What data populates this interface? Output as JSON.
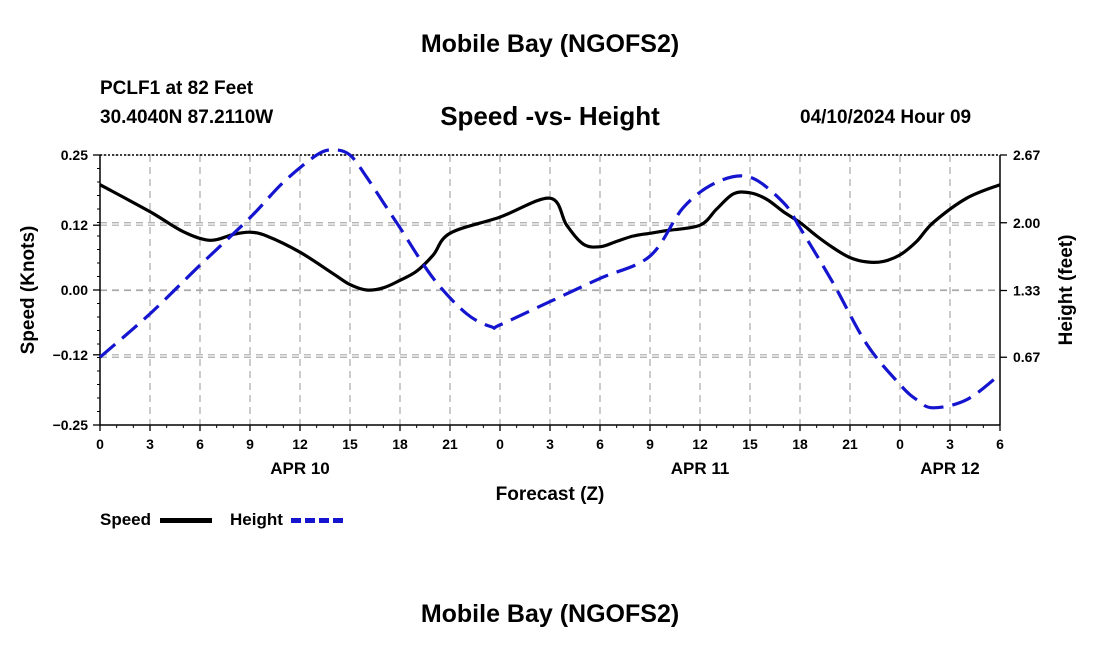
{
  "header": {
    "title": "Mobile Bay (NGOFS2)",
    "station": "PCLF1 at 82 Feet",
    "coords": "30.4040N  87.2110W",
    "chart_title": "Speed -vs- Height",
    "datetime": "04/10/2024 Hour 09"
  },
  "footer": {
    "title": "Mobile Bay (NGOFS2)"
  },
  "legend": {
    "speed_label": "Speed",
    "height_label": "Height"
  },
  "colors": {
    "speed": "#000000",
    "height": "#1515d0",
    "grid": "#aaaaaa"
  },
  "chart_data": {
    "type": "line",
    "title": "Speed -vs- Height",
    "xlabel": "Forecast (Z)",
    "ylabel": "Speed (Knots)",
    "y2label": "Height (feet)",
    "xlim": [
      0,
      54
    ],
    "ylim": [
      -0.25,
      0.25
    ],
    "y2lim": [
      0.0,
      2.67
    ],
    "x_ticks": [
      0,
      3,
      6,
      9,
      12,
      15,
      18,
      21,
      24,
      27,
      30,
      33,
      36,
      39,
      42,
      45,
      48,
      51,
      54
    ],
    "x_tick_labels": [
      "0",
      "3",
      "6",
      "9",
      "12",
      "15",
      "18",
      "21",
      "0",
      "3",
      "6",
      "9",
      "12",
      "15",
      "18",
      "21",
      "0",
      "3",
      "6"
    ],
    "date_labels": [
      {
        "x": 12,
        "label": "APR 10"
      },
      {
        "x": 36,
        "label": "APR 11"
      },
      {
        "x": 51,
        "label": "APR 12"
      }
    ],
    "y_ticks": [
      -0.25,
      -0.12,
      0.0,
      0.12,
      0.25
    ],
    "y_tick_labels": [
      "−0.25",
      "−0.12",
      "0.00",
      "0.12",
      "0.25"
    ],
    "y2_ticks": [
      0.67,
      1.33,
      2.0,
      2.67
    ],
    "y2_tick_labels": [
      "0.67",
      "1.33",
      "2.00",
      "2.67"
    ],
    "series": [
      {
        "name": "Speed",
        "axis": "left",
        "style": "solid",
        "x": [
          0,
          3,
          5,
          6.6,
          8,
          9,
          10,
          12,
          14,
          15,
          16,
          17,
          18,
          19,
          20,
          21,
          24,
          27,
          28,
          29,
          30,
          31,
          32,
          33,
          34,
          36,
          37,
          38,
          39,
          40,
          41,
          42,
          43,
          44,
          45,
          46,
          47,
          48,
          49,
          50,
          52,
          54
        ],
        "y": [
          0.195,
          0.145,
          0.108,
          0.092,
          0.103,
          0.107,
          0.1,
          0.07,
          0.03,
          0.01,
          0.0,
          0.004,
          0.018,
          0.035,
          0.065,
          0.105,
          0.135,
          0.17,
          0.12,
          0.085,
          0.08,
          0.09,
          0.1,
          0.105,
          0.11,
          0.12,
          0.15,
          0.178,
          0.18,
          0.168,
          0.145,
          0.125,
          0.1,
          0.078,
          0.06,
          0.052,
          0.053,
          0.065,
          0.09,
          0.125,
          0.17,
          0.195
        ]
      },
      {
        "name": "Height",
        "axis": "right",
        "style": "dashed",
        "x": [
          0,
          3,
          6,
          9,
          11,
          13,
          14,
          15,
          16,
          17,
          18,
          20,
          22,
          23.5,
          24,
          27,
          30,
          33,
          35,
          37,
          39,
          41,
          42,
          44,
          46,
          48,
          49,
          50,
          52,
          54
        ],
        "y": [
          0.67,
          1.1,
          1.58,
          2.05,
          2.4,
          2.67,
          2.72,
          2.67,
          2.45,
          2.2,
          1.95,
          1.45,
          1.1,
          0.97,
          0.99,
          1.22,
          1.45,
          1.67,
          2.15,
          2.4,
          2.45,
          2.2,
          1.95,
          1.4,
          0.8,
          0.4,
          0.25,
          0.17,
          0.25,
          0.5
        ]
      }
    ]
  }
}
